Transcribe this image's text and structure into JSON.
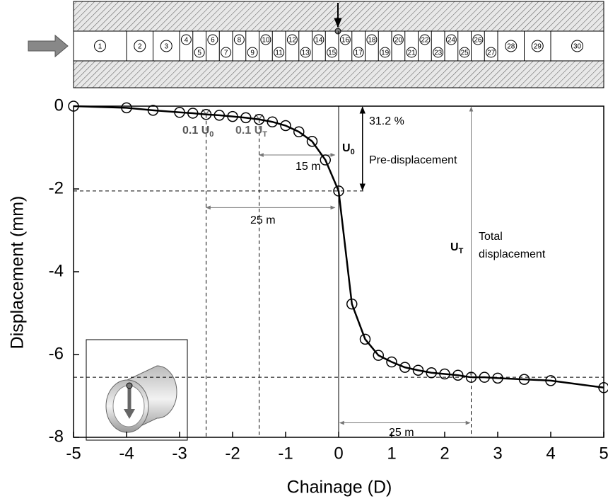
{
  "diagram": {
    "segments": [
      "1",
      "2",
      "3",
      "4",
      "5",
      "6",
      "7",
      "8",
      "9",
      "10",
      "11",
      "12",
      "13",
      "14",
      "15",
      "16",
      "17",
      "18",
      "19",
      "20",
      "21",
      "22",
      "23",
      "24",
      "25",
      "26",
      "27",
      "28",
      "29",
      "30"
    ]
  },
  "chart_data": {
    "type": "line",
    "x_label": "Chainage (D)",
    "y_label": "Displacement (mm)",
    "x": [
      -5,
      -4,
      -3.5,
      -3,
      -2.75,
      -2.5,
      -2.25,
      -2,
      -1.75,
      -1.5,
      -1.25,
      -1,
      -0.75,
      -0.5,
      -0.25,
      0,
      0.25,
      0.5,
      0.75,
      1,
      1.25,
      1.5,
      1.75,
      2,
      2.25,
      2.5,
      2.75,
      3,
      3.5,
      4,
      5
    ],
    "series": [
      {
        "name": "Displacement",
        "color": "#000000",
        "values": [
          0,
          -0.04,
          -0.1,
          -0.15,
          -0.17,
          -0.2,
          -0.22,
          -0.25,
          -0.28,
          -0.32,
          -0.38,
          -0.47,
          -0.62,
          -0.85,
          -1.3,
          -2.05,
          -4.78,
          -5.63,
          -6.02,
          -6.18,
          -6.31,
          -6.38,
          -6.44,
          -6.47,
          -6.5,
          -6.55,
          -6.55,
          -6.57,
          -6.6,
          -6.63,
          -6.8
        ]
      }
    ],
    "xlim": [
      -5,
      5
    ],
    "ylim": [
      -8,
      0
    ],
    "xticks": [
      -5,
      -4,
      -3,
      -2,
      -1,
      0,
      1,
      2,
      3,
      4,
      5
    ],
    "yticks": [
      0,
      -2,
      -4,
      -6,
      -8
    ],
    "annotations": [
      {
        "text": "0.1 U",
        "sub": "0"
      },
      {
        "text": "0.1 U",
        "sub": "T"
      },
      {
        "text": "15 m"
      },
      {
        "text": "25 m"
      },
      {
        "text": "U",
        "sub": "0"
      },
      {
        "text": "31.2 %"
      },
      {
        "text": "Pre-displacement"
      },
      {
        "text": "U",
        "sub": "T"
      },
      {
        "text": "Total"
      },
      {
        "text": "displacement"
      },
      {
        "text": "25 m"
      }
    ]
  }
}
